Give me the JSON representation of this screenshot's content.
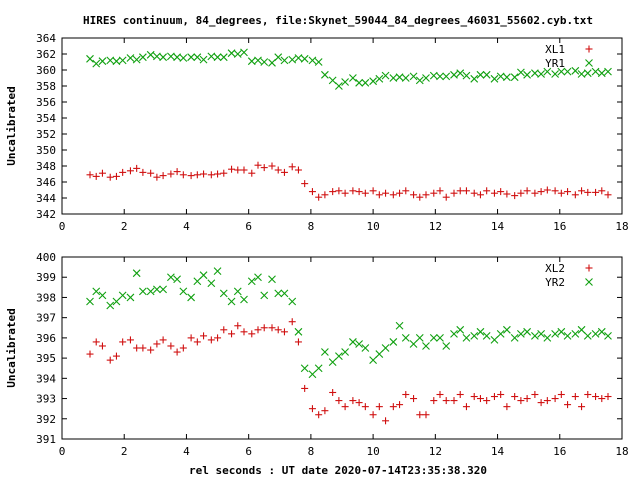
{
  "title": "HIRES continuum, 84_degrees, file:Skynet_59044_84_degrees_46031_55602.cyb.txt",
  "xlabel": "rel seconds : UT date 2020-07-14T23:35:38.320",
  "chart_data": [
    {
      "type": "scatter",
      "ylabel": "Uncalibrated",
      "xlim": [
        0,
        18
      ],
      "ylim": [
        342,
        364
      ],
      "xticks": [
        0,
        2,
        4,
        6,
        8,
        10,
        12,
        14,
        16,
        18
      ],
      "yticks": [
        342,
        344,
        346,
        348,
        350,
        352,
        354,
        356,
        358,
        360,
        362,
        364
      ],
      "grid": false,
      "legend_position": "top-right",
      "series": [
        {
          "name": "XL1",
          "color": "#d01010",
          "marker": "plus",
          "x": [
            0.9,
            1.1,
            1.3,
            1.55,
            1.75,
            1.95,
            2.2,
            2.4,
            2.6,
            2.85,
            3.05,
            3.25,
            3.5,
            3.7,
            3.9,
            4.15,
            4.35,
            4.55,
            4.8,
            5.0,
            5.2,
            5.45,
            5.65,
            5.85,
            6.1,
            6.3,
            6.5,
            6.75,
            6.95,
            7.15,
            7.4,
            7.6,
            7.8,
            8.05,
            8.25,
            8.45,
            8.7,
            8.9,
            9.1,
            9.35,
            9.55,
            9.75,
            10.0,
            10.2,
            10.4,
            10.65,
            10.85,
            11.05,
            11.3,
            11.5,
            11.7,
            11.95,
            12.15,
            12.35,
            12.6,
            12.8,
            13.0,
            13.25,
            13.45,
            13.65,
            13.9,
            14.1,
            14.3,
            14.55,
            14.75,
            14.95,
            15.2,
            15.4,
            15.6,
            15.85,
            16.05,
            16.25,
            16.5,
            16.7,
            16.9,
            17.15,
            17.35,
            17.55
          ],
          "y": [
            346.9,
            346.7,
            347.1,
            346.6,
            346.7,
            347.2,
            347.4,
            347.7,
            347.2,
            347.1,
            346.6,
            346.8,
            347.0,
            347.3,
            346.9,
            346.8,
            346.9,
            347.0,
            346.9,
            347.0,
            347.1,
            347.6,
            347.5,
            347.5,
            347.1,
            348.1,
            347.8,
            348.0,
            347.5,
            347.2,
            347.9,
            347.5,
            345.8,
            344.8,
            344.1,
            344.4,
            344.8,
            344.9,
            344.6,
            344.9,
            344.8,
            344.6,
            344.9,
            344.4,
            344.6,
            344.4,
            344.6,
            344.9,
            344.4,
            344.1,
            344.4,
            344.6,
            344.9,
            344.1,
            344.6,
            344.9,
            344.9,
            344.6,
            344.4,
            344.9,
            344.6,
            344.8,
            344.5,
            344.3,
            344.6,
            344.9,
            344.6,
            344.8,
            345.0,
            344.9,
            344.6,
            344.8,
            344.4,
            344.9,
            344.7,
            344.7,
            344.9,
            344.4
          ]
        },
        {
          "name": "YR1",
          "color": "#10a010",
          "marker": "cross",
          "x": [
            0.9,
            1.1,
            1.3,
            1.55,
            1.75,
            1.95,
            2.2,
            2.4,
            2.6,
            2.85,
            3.05,
            3.25,
            3.5,
            3.7,
            3.9,
            4.15,
            4.35,
            4.55,
            4.8,
            5.0,
            5.2,
            5.45,
            5.65,
            5.85,
            6.1,
            6.3,
            6.5,
            6.75,
            6.95,
            7.15,
            7.4,
            7.6,
            7.8,
            8.05,
            8.25,
            8.45,
            8.7,
            8.9,
            9.1,
            9.35,
            9.55,
            9.75,
            10.0,
            10.2,
            10.4,
            10.65,
            10.85,
            11.05,
            11.3,
            11.5,
            11.7,
            11.95,
            12.15,
            12.35,
            12.6,
            12.8,
            13.0,
            13.25,
            13.45,
            13.65,
            13.9,
            14.1,
            14.3,
            14.55,
            14.75,
            14.95,
            15.2,
            15.4,
            15.6,
            15.85,
            16.05,
            16.25,
            16.5,
            16.7,
            16.9,
            17.15,
            17.35,
            17.55
          ],
          "y": [
            361.4,
            360.8,
            361.1,
            361.2,
            361.1,
            361.2,
            361.5,
            361.3,
            361.6,
            361.9,
            361.7,
            361.6,
            361.7,
            361.6,
            361.5,
            361.6,
            361.6,
            361.3,
            361.7,
            361.6,
            361.6,
            362.1,
            362.0,
            362.2,
            361.1,
            361.2,
            361.0,
            360.9,
            361.6,
            361.2,
            361.3,
            361.5,
            361.4,
            361.2,
            361.0,
            359.4,
            358.7,
            358.0,
            358.5,
            359.0,
            358.4,
            358.4,
            358.6,
            358.9,
            359.3,
            359.0,
            359.1,
            359.0,
            359.2,
            358.7,
            359.0,
            359.3,
            359.2,
            359.2,
            359.4,
            359.6,
            359.3,
            358.9,
            359.4,
            359.4,
            358.9,
            359.2,
            359.1,
            359.1,
            359.7,
            359.4,
            359.6,
            359.5,
            359.8,
            359.5,
            359.8,
            359.8,
            359.9,
            359.5,
            359.6,
            359.8,
            359.6,
            359.8
          ]
        }
      ]
    },
    {
      "type": "scatter",
      "ylabel": "Uncalibrated",
      "xlim": [
        0,
        18
      ],
      "ylim": [
        391,
        400
      ],
      "xticks": [
        0,
        2,
        4,
        6,
        8,
        10,
        12,
        14,
        16,
        18
      ],
      "yticks": [
        391,
        392,
        393,
        394,
        395,
        396,
        397,
        398,
        399,
        400
      ],
      "grid": false,
      "legend_position": "top-right",
      "series": [
        {
          "name": "XL2",
          "color": "#d01010",
          "marker": "plus",
          "x": [
            0.9,
            1.1,
            1.3,
            1.55,
            1.75,
            1.95,
            2.2,
            2.4,
            2.6,
            2.85,
            3.05,
            3.25,
            3.5,
            3.7,
            3.9,
            4.15,
            4.35,
            4.55,
            4.8,
            5.0,
            5.2,
            5.45,
            5.65,
            5.85,
            6.1,
            6.3,
            6.5,
            6.75,
            6.95,
            7.15,
            7.4,
            7.6,
            7.8,
            8.05,
            8.25,
            8.45,
            8.7,
            8.9,
            9.1,
            9.35,
            9.55,
            9.75,
            10.0,
            10.2,
            10.4,
            10.65,
            10.85,
            11.05,
            11.3,
            11.5,
            11.7,
            11.95,
            12.15,
            12.35,
            12.6,
            12.8,
            13.0,
            13.25,
            13.45,
            13.65,
            13.9,
            14.1,
            14.3,
            14.55,
            14.75,
            14.95,
            15.2,
            15.4,
            15.6,
            15.85,
            16.05,
            16.25,
            16.5,
            16.7,
            16.9,
            17.15,
            17.35,
            17.55
          ],
          "y": [
            395.2,
            395.8,
            395.6,
            394.9,
            395.1,
            395.8,
            395.9,
            395.5,
            395.5,
            395.4,
            395.7,
            395.9,
            395.6,
            395.3,
            395.5,
            396.0,
            395.8,
            396.1,
            395.9,
            396.0,
            396.4,
            396.2,
            396.6,
            396.3,
            396.2,
            396.4,
            396.5,
            396.5,
            396.4,
            396.3,
            396.8,
            395.8,
            393.5,
            392.5,
            392.2,
            392.4,
            393.3,
            392.9,
            392.6,
            392.9,
            392.8,
            392.6,
            392.2,
            392.6,
            391.9,
            392.6,
            392.7,
            393.2,
            393.0,
            392.2,
            392.2,
            392.9,
            393.2,
            392.9,
            392.9,
            393.2,
            392.6,
            393.1,
            393.0,
            392.9,
            393.1,
            393.2,
            392.6,
            393.1,
            392.9,
            393.0,
            393.2,
            392.8,
            392.9,
            393.0,
            393.2,
            392.7,
            393.1,
            392.6,
            393.2,
            393.1,
            393.0,
            393.1
          ]
        },
        {
          "name": "YR2",
          "color": "#10a010",
          "marker": "cross",
          "x": [
            0.9,
            1.1,
            1.3,
            1.55,
            1.75,
            1.95,
            2.2,
            2.4,
            2.6,
            2.85,
            3.05,
            3.25,
            3.5,
            3.7,
            3.9,
            4.15,
            4.35,
            4.55,
            4.8,
            5.0,
            5.2,
            5.45,
            5.65,
            5.85,
            6.1,
            6.3,
            6.5,
            6.75,
            6.95,
            7.15,
            7.4,
            7.6,
            7.8,
            8.05,
            8.25,
            8.45,
            8.7,
            8.9,
            9.1,
            9.35,
            9.55,
            9.75,
            10.0,
            10.2,
            10.4,
            10.65,
            10.85,
            11.05,
            11.3,
            11.5,
            11.7,
            11.95,
            12.15,
            12.35,
            12.6,
            12.8,
            13.0,
            13.25,
            13.45,
            13.65,
            13.9,
            14.1,
            14.3,
            14.55,
            14.75,
            14.95,
            15.2,
            15.4,
            15.6,
            15.85,
            16.05,
            16.25,
            16.5,
            16.7,
            16.9,
            17.15,
            17.35,
            17.55
          ],
          "y": [
            397.8,
            398.3,
            398.1,
            397.6,
            397.8,
            398.1,
            398.0,
            399.2,
            398.3,
            398.3,
            398.4,
            398.4,
            399.0,
            398.9,
            398.3,
            398.0,
            398.8,
            399.1,
            398.7,
            399.3,
            398.2,
            397.8,
            398.3,
            397.9,
            398.8,
            399.0,
            398.1,
            398.9,
            398.2,
            398.2,
            397.8,
            396.3,
            394.5,
            394.2,
            394.5,
            395.3,
            394.8,
            395.1,
            395.3,
            395.8,
            395.7,
            395.5,
            394.9,
            395.2,
            395.5,
            395.8,
            396.6,
            396.0,
            395.7,
            396.0,
            395.6,
            396.0,
            396.0,
            395.6,
            396.2,
            396.4,
            396.0,
            396.1,
            396.3,
            396.1,
            395.9,
            396.2,
            396.4,
            396.0,
            396.2,
            396.3,
            396.1,
            396.2,
            396.0,
            396.2,
            396.3,
            396.1,
            396.2,
            396.4,
            396.1,
            396.2,
            396.3,
            396.1
          ]
        }
      ]
    }
  ]
}
